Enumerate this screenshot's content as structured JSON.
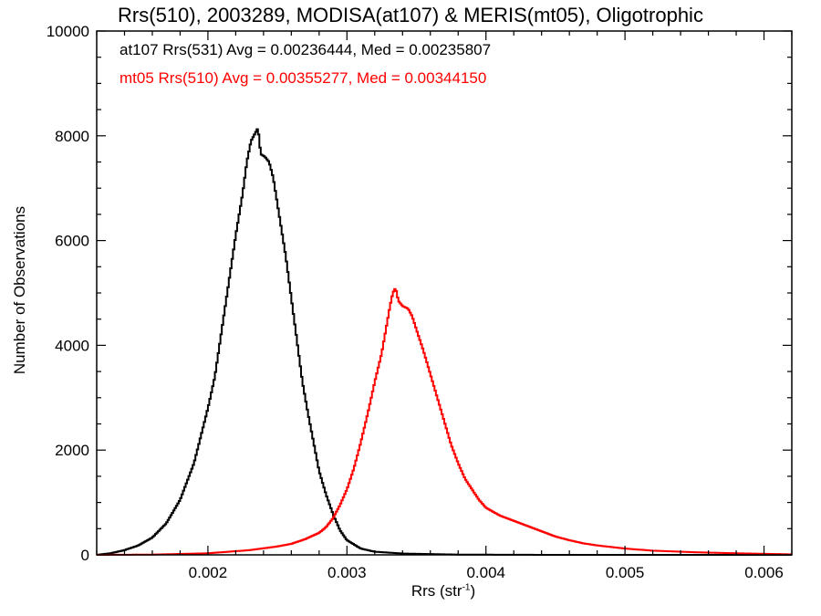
{
  "chart_data": {
    "type": "line",
    "title": "Rrs(510), 2003289, MODISA(at107) & MERIS(mt05), Oligotrophic",
    "xlabel": "Rrs (str",
    "xlabel_unit_exponent": "-1",
    "xlabel_close": ")",
    "ylabel": "Number of Observations",
    "xlim": [
      0.0012,
      0.0062
    ],
    "ylim": [
      0,
      10000
    ],
    "x_ticks": [
      0.002,
      0.003,
      0.004,
      0.005,
      0.006
    ],
    "x_tick_labels": [
      "0.002",
      "0.003",
      "0.004",
      "0.005",
      "0.006"
    ],
    "y_ticks": [
      0,
      2000,
      4000,
      6000,
      8000,
      10000
    ],
    "y_tick_labels": [
      "0",
      "2000",
      "4000",
      "6000",
      "8000",
      "10000"
    ],
    "grid": false,
    "step": true,
    "annotations": [
      {
        "text": "at107 Rrs(531) Avg = 0.00236444, Med = 0.00235807",
        "color": "#000000"
      },
      {
        "text": "mt05 Rrs(510) Avg = 0.00355277, Med = 0.00344150",
        "color": "#ff0000"
      }
    ],
    "series": [
      {
        "color": "#000000",
        "points": [
          [
            0.0012,
            0
          ],
          [
            0.0013,
            30
          ],
          [
            0.0014,
            90
          ],
          [
            0.0015,
            180
          ],
          [
            0.0016,
            330
          ],
          [
            0.0017,
            600
          ],
          [
            0.0018,
            1050
          ],
          [
            0.0019,
            1750
          ],
          [
            0.002,
            2800
          ],
          [
            0.00205,
            3400
          ],
          [
            0.0021,
            4300
          ],
          [
            0.00215,
            5200
          ],
          [
            0.0022,
            6100
          ],
          [
            0.00225,
            6900
          ],
          [
            0.00228,
            7500
          ],
          [
            0.00231,
            7900
          ],
          [
            0.00234,
            8050
          ],
          [
            0.00236,
            8150
          ],
          [
            0.00238,
            7650
          ],
          [
            0.00241,
            7600
          ],
          [
            0.00244,
            7500
          ],
          [
            0.00247,
            7200
          ],
          [
            0.0025,
            6700
          ],
          [
            0.00253,
            6200
          ],
          [
            0.00256,
            5700
          ],
          [
            0.00259,
            5100
          ],
          [
            0.00262,
            4500
          ],
          [
            0.00265,
            3900
          ],
          [
            0.00268,
            3300
          ],
          [
            0.00272,
            2700
          ],
          [
            0.00276,
            2150
          ],
          [
            0.0028,
            1600
          ],
          [
            0.00285,
            1150
          ],
          [
            0.0029,
            780
          ],
          [
            0.00295,
            470
          ],
          [
            0.003,
            280
          ],
          [
            0.0031,
            120
          ],
          [
            0.0032,
            60
          ],
          [
            0.0034,
            25
          ],
          [
            0.0038,
            5
          ],
          [
            0.0045,
            0
          ],
          [
            0.0062,
            0
          ]
        ]
      },
      {
        "color": "#ff0000",
        "points": [
          [
            0.0012,
            0
          ],
          [
            0.0016,
            5
          ],
          [
            0.002,
            30
          ],
          [
            0.0023,
            90
          ],
          [
            0.0025,
            160
          ],
          [
            0.0026,
            210
          ],
          [
            0.0027,
            300
          ],
          [
            0.0028,
            420
          ],
          [
            0.00285,
            530
          ],
          [
            0.0029,
            700
          ],
          [
            0.00295,
            950
          ],
          [
            0.003,
            1250
          ],
          [
            0.00305,
            1650
          ],
          [
            0.0031,
            2150
          ],
          [
            0.00315,
            2700
          ],
          [
            0.0032,
            3300
          ],
          [
            0.00325,
            3850
          ],
          [
            0.00328,
            4300
          ],
          [
            0.00331,
            4750
          ],
          [
            0.00333,
            5000
          ],
          [
            0.00335,
            5100
          ],
          [
            0.00337,
            4850
          ],
          [
            0.0034,
            4750
          ],
          [
            0.00344,
            4700
          ],
          [
            0.00347,
            4550
          ],
          [
            0.0035,
            4300
          ],
          [
            0.00355,
            3900
          ],
          [
            0.0036,
            3450
          ],
          [
            0.00365,
            3000
          ],
          [
            0.0037,
            2550
          ],
          [
            0.00375,
            2100
          ],
          [
            0.0038,
            1750
          ],
          [
            0.00385,
            1450
          ],
          [
            0.0039,
            1250
          ],
          [
            0.00395,
            1050
          ],
          [
            0.004,
            900
          ],
          [
            0.0041,
            750
          ],
          [
            0.0042,
            650
          ],
          [
            0.0043,
            550
          ],
          [
            0.0044,
            450
          ],
          [
            0.0045,
            350
          ],
          [
            0.0046,
            280
          ],
          [
            0.0047,
            220
          ],
          [
            0.0048,
            180
          ],
          [
            0.005,
            120
          ],
          [
            0.0052,
            80
          ],
          [
            0.0055,
            50
          ],
          [
            0.0058,
            30
          ],
          [
            0.0062,
            10
          ]
        ]
      }
    ]
  }
}
